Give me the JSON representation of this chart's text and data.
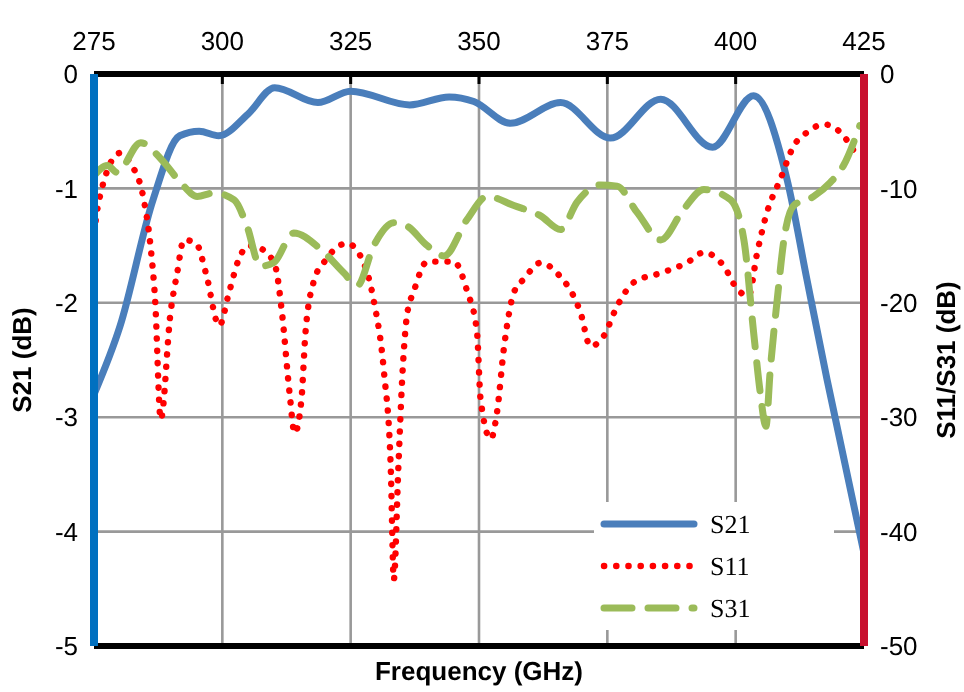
{
  "chart_data": {
    "type": "line",
    "xlabel": "Frequency (GHz)",
    "ylabel": "S21 (dB)",
    "y2label": "S11/S31 (dB)",
    "xlim": [
      275,
      425
    ],
    "xticks": [
      275,
      300,
      325,
      350,
      375,
      400,
      425
    ],
    "ylim": [
      -5,
      0
    ],
    "yticks": [
      -5,
      -4,
      -3,
      -2,
      -1,
      0
    ],
    "y2lim": [
      -50,
      0
    ],
    "y2ticks": [
      -50,
      -40,
      -30,
      -20,
      -10,
      0
    ],
    "grid": true,
    "legend": "bottom right",
    "marker": "none",
    "series": [
      {
        "name": "S21",
        "color": "#4a7ebb",
        "line_style": "solid",
        "x": [
          275,
          280.1,
          286.5,
          291.7,
          295.5,
          299.3,
          305,
          310.2,
          318.6,
          325,
          336.5,
          344.2,
          349,
          356.1,
          365.9,
          375.6,
          385.4,
          395.5,
          403.5,
          410,
          413.9,
          417.8,
          425
        ],
        "values": [
          -2.8,
          -2.2,
          -1.1,
          -0.54,
          -0.5,
          -0.54,
          -0.35,
          -0.12,
          -0.25,
          -0.15,
          -0.27,
          -0.2,
          -0.24,
          -0.43,
          -0.25,
          -0.56,
          -0.22,
          -0.64,
          -0.19,
          -0.92,
          -1.8,
          -2.67,
          -4.19
        ]
      },
      {
        "name": "S11",
        "color": "#ff0000",
        "line_style": "dotted",
        "axis": "y2",
        "x": [
          275,
          276,
          280.1,
          282.1,
          284.7,
          286,
          286.9,
          288,
          289.9,
          291.2,
          292.5,
          294.9,
          296.8,
          299.4,
          301.3,
          303.2,
          305.1,
          307.7,
          310.3,
          311.6,
          313.1,
          314.1,
          315.4,
          316.2,
          317.9,
          319.9,
          324.3,
          326.9,
          329.5,
          331.5,
          332.8,
          333.4,
          334.3,
          335.1,
          336,
          337.3,
          339.9,
          342.5,
          345.1,
          347.7,
          349.6,
          350.3,
          352.3,
          353.5,
          354.9,
          356.8,
          358.8,
          362,
          365.2,
          369.8,
          371.7,
          374.3,
          376.9,
          380.2,
          385.4,
          390.5,
          393.8,
          397.7,
          400.3,
          402.5,
          404.2,
          406.1,
          408.7,
          411.3,
          413.9,
          417.2,
          420.4,
          424
        ],
        "values": [
          -13.9,
          -11,
          -6.9,
          -7.8,
          -11,
          -15,
          -19.7,
          -30.2,
          -20.9,
          -17.4,
          -14.5,
          -14.8,
          -17.4,
          -22,
          -19.1,
          -16.2,
          -15,
          -15.3,
          -16.8,
          -20.8,
          -27.9,
          -31.4,
          -28.5,
          -22.6,
          -18,
          -16.4,
          -14.8,
          -15.9,
          -19.8,
          -26.1,
          -34.3,
          -44.2,
          -34.3,
          -26.1,
          -21,
          -19,
          -16.4,
          -16.4,
          -16.4,
          -19,
          -22.5,
          -28.4,
          -31.9,
          -29.6,
          -23.8,
          -19.1,
          -17.9,
          -16.5,
          -17.4,
          -20.9,
          -23.8,
          -22.9,
          -20.3,
          -18.2,
          -17.4,
          -16.5,
          -15.6,
          -16.8,
          -18.8,
          -19.4,
          -15.6,
          -12.1,
          -9.2,
          -6.3,
          -5.1,
          -4.4,
          -5.1,
          -7.5
        ]
      },
      {
        "name": "S31",
        "color": "#9bbb59",
        "line_style": "dashed",
        "axis": "y2",
        "x": [
          275,
          277.6,
          279.5,
          284.1,
          288,
          291.9,
          295.1,
          298.4,
          302.3,
          304.8,
          307.4,
          310,
          313.9,
          319.1,
          323.7,
          326.3,
          329.5,
          333.4,
          336,
          339.9,
          343.2,
          347.7,
          351.6,
          356.8,
          362,
          365.9,
          369.1,
          373.7,
          376.9,
          380.8,
          385.4,
          389.9,
          393.8,
          399,
          401.6,
          403.5,
          404.8,
          405.9,
          406.7,
          408.1,
          409.4,
          411.3,
          415.2,
          418.4,
          421,
          424.2
        ],
        "values": [
          -8.9,
          -8,
          -8.6,
          -6,
          -7.4,
          -9.5,
          -10.7,
          -10.4,
          -11,
          -13.3,
          -16.8,
          -16.5,
          -13.9,
          -15.3,
          -17.4,
          -18.5,
          -15,
          -13,
          -13.3,
          -15,
          -15.9,
          -12.7,
          -10.7,
          -11.5,
          -12.4,
          -13.6,
          -11.2,
          -9.7,
          -9.8,
          -12.1,
          -14.5,
          -11.8,
          -10.1,
          -11,
          -14.5,
          -22.6,
          -27.9,
          -30.8,
          -26.1,
          -19.7,
          -14.5,
          -11.5,
          -10.7,
          -9.5,
          -8,
          -4.5
        ]
      }
    ]
  }
}
